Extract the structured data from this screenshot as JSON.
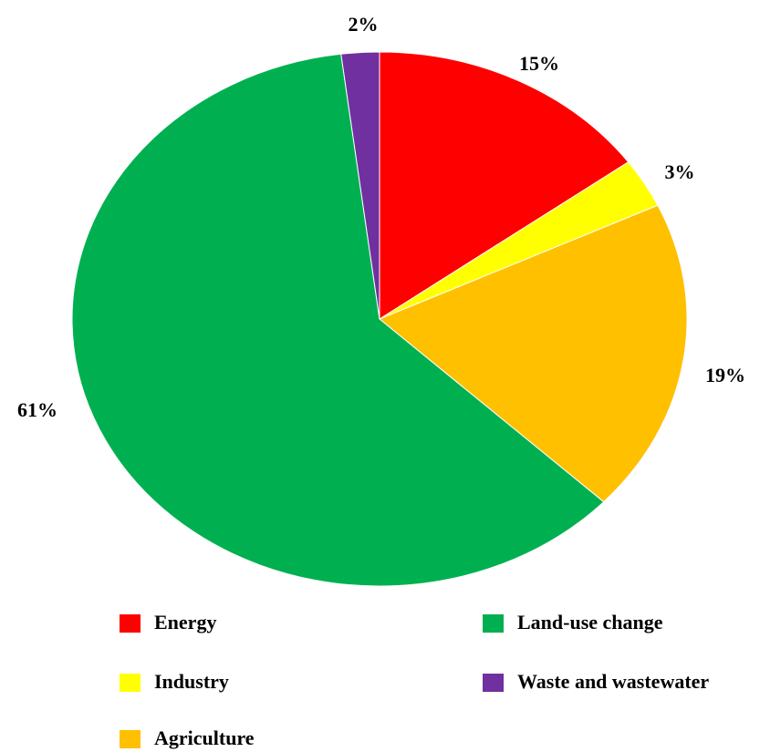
{
  "chart_data": {
    "type": "pie",
    "title": "",
    "slices": [
      {
        "name": "Energy",
        "value": 15,
        "label": "15%",
        "color": "#ff0000"
      },
      {
        "name": "Industry",
        "value": 3,
        "label": "3%",
        "color": "#ffff00"
      },
      {
        "name": "Agriculture",
        "value": 19,
        "label": "19%",
        "color": "#ffc000"
      },
      {
        "name": "Land-use change",
        "value": 61,
        "label": "61%",
        "color": "#00b050"
      },
      {
        "name": "Waste and wastewater",
        "value": 2,
        "label": "2%",
        "color": "#7030a0"
      }
    ],
    "start_angle_deg": 0,
    "direction": "clockwise",
    "legend_position": "bottom"
  }
}
